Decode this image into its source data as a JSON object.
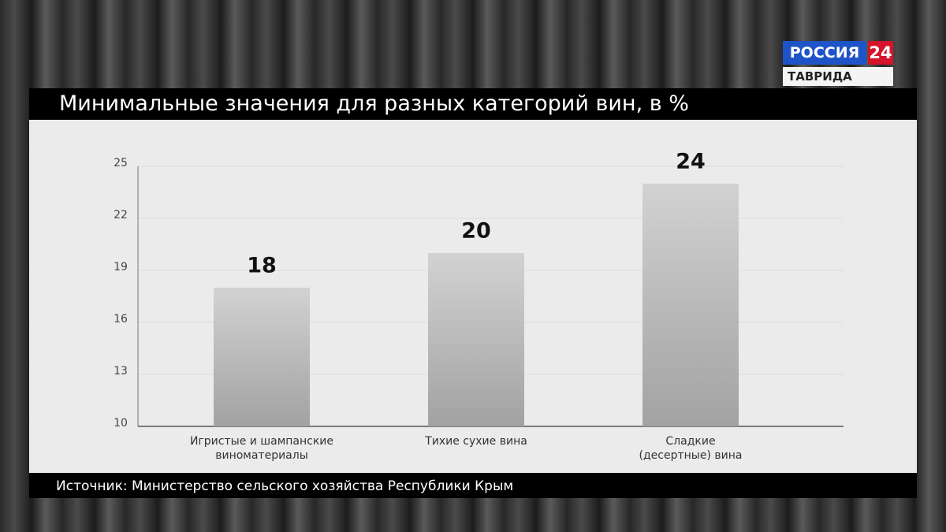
{
  "logo": {
    "brand": "РОССИЯ",
    "number": "24",
    "region": "ТАВРИДА"
  },
  "chart_data": {
    "type": "bar",
    "title": "Минимальные значения для разных категорий вин, в %",
    "categories": [
      "Игристые и шампанские виноматериалы",
      "Тихие сухие вина",
      "Сладкие (десертные) вина"
    ],
    "values": [
      18,
      20,
      24
    ],
    "ylim": [
      10,
      25
    ],
    "yticks": [
      10,
      13,
      16,
      19,
      22,
      25
    ],
    "grid": true,
    "source": "Источник: Министерство сельского хозяйства Республики Крым"
  }
}
